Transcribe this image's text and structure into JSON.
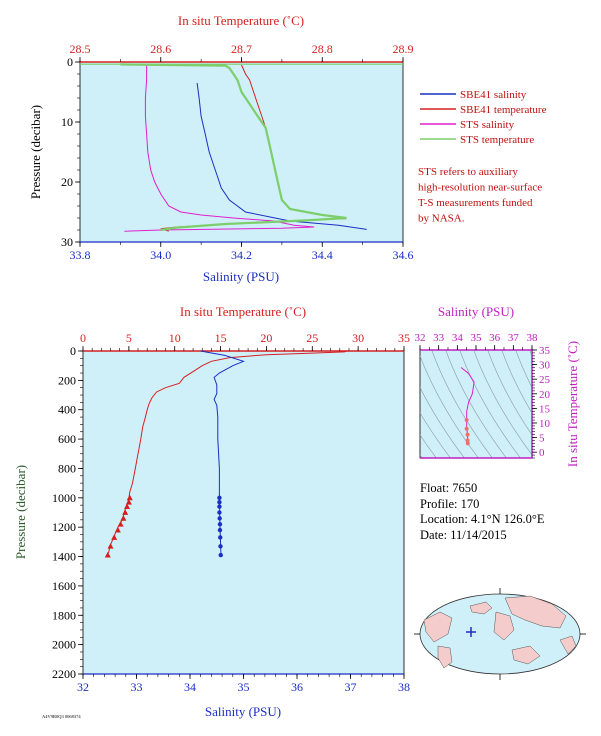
{
  "chart_data": [
    {
      "type": "line",
      "name": "upper-profile",
      "top_axis_label": "In situ Temperature (˚C)",
      "bottom_axis_label": "Salinity (PSU)",
      "ylabel": "Pressure (decibar)",
      "temperature_range": [
        28.5,
        28.9
      ],
      "temperature_ticks": [
        "28.5",
        "28.6",
        "28.7",
        "28.8",
        "28.9"
      ],
      "salinity_range": [
        33.8,
        34.6
      ],
      "salinity_ticks": [
        "33.8",
        "34.0",
        "34.2",
        "34.4",
        "34.6"
      ],
      "pressure_range": [
        0,
        30
      ],
      "pressure_ticks": [
        "0",
        "10",
        "20",
        "30"
      ],
      "legend": [
        {
          "label": "SBE41 salinity",
          "color": "#1a2fc4"
        },
        {
          "label": "SBE41 temperature",
          "color": "#d62020"
        },
        {
          "label": "STS salinity",
          "color": "#e020d0"
        },
        {
          "label": "STS temperature",
          "color": "#7ccf6a"
        }
      ],
      "note": [
        "STS refers to auxiliary",
        "high-resolution near-surface",
        "T-S measurements funded",
        "by NASA."
      ],
      "series": [
        {
          "name": "SBE41 salinity",
          "axis": "salinity",
          "color": "#1a2fc4",
          "points": [
            [
              34.09,
              3.5
            ],
            [
              34.095,
              6
            ],
            [
              34.1,
              9
            ],
            [
              34.11,
              12
            ],
            [
              34.12,
              15
            ],
            [
              34.13,
              17
            ],
            [
              34.14,
              19
            ],
            [
              34.15,
              21
            ],
            [
              34.17,
              23
            ],
            [
              34.21,
              25
            ],
            [
              34.32,
              26.5
            ],
            [
              34.44,
              27.2
            ],
            [
              34.51,
              27.9
            ]
          ]
        },
        {
          "name": "SBE41 temperature",
          "axis": "temperature",
          "color": "#d62020",
          "points": [
            [
              28.7,
              0.5
            ],
            [
              28.705,
              2
            ],
            [
              28.71,
              3
            ],
            [
              28.715,
              5
            ],
            [
              28.72,
              7
            ],
            [
              28.725,
              9
            ],
            [
              28.73,
              11
            ],
            [
              28.735,
              14
            ],
            [
              28.74,
              17
            ],
            [
              28.745,
              20
            ],
            [
              28.75,
              23
            ],
            [
              28.76,
              24.5
            ],
            [
              28.8,
              25.5
            ],
            [
              28.83,
              26.1
            ],
            [
              28.75,
              26.5
            ],
            [
              28.66,
              27.2
            ],
            [
              28.62,
              27.5
            ],
            [
              28.6,
              27.8
            ],
            [
              28.61,
              28.2
            ]
          ]
        },
        {
          "name": "STS salinity",
          "axis": "salinity",
          "color": "#e020d0",
          "points": [
            [
              33.965,
              0.5
            ],
            [
              33.965,
              1
            ],
            [
              33.965,
              3
            ],
            [
              33.962,
              6
            ],
            [
              33.962,
              9
            ],
            [
              33.965,
              12
            ],
            [
              33.968,
              15
            ],
            [
              33.975,
              18
            ],
            [
              33.985,
              20
            ],
            [
              34.0,
              22
            ],
            [
              34.02,
              24
            ],
            [
              34.05,
              25
            ],
            [
              34.1,
              25.5
            ],
            [
              34.18,
              26
            ],
            [
              34.28,
              26.5
            ],
            [
              34.33,
              27.2
            ],
            [
              34.38,
              27.5
            ],
            [
              34.3,
              27.7
            ],
            [
              34.0,
              28
            ],
            [
              33.91,
              28.2
            ]
          ]
        },
        {
          "name": "STS temperature",
          "axis": "temperature",
          "color": "#7ccf6a",
          "points": [
            [
              28.55,
              0.4
            ],
            [
              28.68,
              0.6
            ],
            [
              28.685,
              1
            ],
            [
              28.69,
              2
            ],
            [
              28.695,
              3
            ],
            [
              28.7,
              5
            ],
            [
              28.71,
              7
            ],
            [
              28.72,
              9
            ],
            [
              28.73,
              11
            ],
            [
              28.735,
              14
            ],
            [
              28.74,
              17
            ],
            [
              28.745,
              20
            ],
            [
              28.75,
              23
            ],
            [
              28.76,
              24.5
            ],
            [
              28.8,
              25.5
            ],
            [
              28.83,
              26.0
            ],
            [
              28.78,
              26.4
            ],
            [
              28.68,
              27.0
            ],
            [
              28.62,
              27.6
            ],
            [
              28.6,
              28.0
            ]
          ]
        }
      ]
    },
    {
      "type": "line",
      "name": "lower-profile",
      "top_axis_label": "In situ Temperature (˚C)",
      "bottom_axis_label": "Salinity (PSU)",
      "ylabel": "Pressure (decibar)",
      "temperature_range": [
        0,
        35
      ],
      "temperature_ticks": [
        "0",
        "5",
        "10",
        "15",
        "20",
        "25",
        "30",
        "35"
      ],
      "salinity_range": [
        32,
        38
      ],
      "salinity_ticks": [
        "32",
        "33",
        "34",
        "35",
        "36",
        "37",
        "38"
      ],
      "pressure_range": [
        0,
        2200
      ],
      "pressure_ticks": [
        "0",
        "200",
        "400",
        "600",
        "800",
        "1000",
        "1200",
        "1400",
        "1600",
        "1800",
        "2000",
        "2200"
      ],
      "series": [
        {
          "name": "temperature",
          "axis": "temperature",
          "color": "#d62020",
          "points": [
            [
              28.8,
              0
            ],
            [
              28.5,
              6
            ],
            [
              25,
              14
            ],
            [
              20,
              25
            ],
            [
              16,
              45
            ],
            [
              14,
              70
            ],
            [
              13,
              100
            ],
            [
              12,
              140
            ],
            [
              11,
              180
            ],
            [
              10.5,
              220
            ],
            [
              9,
              250
            ],
            [
              8,
              280
            ],
            [
              7.5,
              320
            ],
            [
              7.2,
              360
            ],
            [
              7,
              400
            ],
            [
              6.8,
              450
            ],
            [
              6.5,
              520
            ],
            [
              6.3,
              600
            ],
            [
              6,
              700
            ],
            [
              5.7,
              800
            ],
            [
              5.4,
              900
            ],
            [
              5.1,
              960
            ],
            [
              5,
              1000
            ],
            [
              4.9,
              1030
            ],
            [
              4.7,
              1060
            ],
            [
              4.5,
              1100
            ],
            [
              4.3,
              1150
            ],
            [
              3.8,
              1200
            ],
            [
              3.4,
              1260
            ],
            [
              3.0,
              1320
            ],
            [
              2.8,
              1370
            ],
            [
              2.6,
              1400
            ]
          ]
        },
        {
          "name": "salinity",
          "axis": "salinity",
          "color": "#1a2fc4",
          "points": [
            [
              34.2,
              0
            ],
            [
              34.35,
              10
            ],
            [
              34.65,
              30
            ],
            [
              35.0,
              70
            ],
            [
              34.8,
              100
            ],
            [
              34.55,
              150
            ],
            [
              34.45,
              180
            ],
            [
              34.5,
              230
            ],
            [
              34.5,
              290
            ],
            [
              34.45,
              330
            ],
            [
              34.5,
              370
            ],
            [
              34.52,
              450
            ],
            [
              34.52,
              600
            ],
            [
              34.55,
              800
            ],
            [
              34.55,
              1000
            ],
            [
              34.56,
              1200
            ],
            [
              34.58,
              1400
            ]
          ]
        },
        {
          "name": "temperature-markers",
          "axis": "temperature",
          "color": "#d62020",
          "marker": "triangle",
          "points": [
            [
              5.1,
              1000
            ],
            [
              5.0,
              1030
            ],
            [
              4.8,
              1060
            ],
            [
              4.6,
              1100
            ],
            [
              4.4,
              1140
            ],
            [
              4.1,
              1180
            ],
            [
              3.8,
              1220
            ],
            [
              3.4,
              1270
            ],
            [
              3.0,
              1330
            ],
            [
              2.7,
              1390
            ]
          ]
        },
        {
          "name": "salinity-markers",
          "axis": "salinity",
          "color": "#1a2fc4",
          "marker": "circle",
          "points": [
            [
              34.55,
              1000
            ],
            [
              34.55,
              1030
            ],
            [
              34.55,
              1060
            ],
            [
              34.55,
              1100
            ],
            [
              34.555,
              1140
            ],
            [
              34.56,
              1180
            ],
            [
              34.56,
              1220
            ],
            [
              34.565,
              1270
            ],
            [
              34.57,
              1330
            ],
            [
              34.575,
              1390
            ]
          ]
        }
      ]
    },
    {
      "type": "scatter",
      "name": "ts-diagram",
      "top_axis_label": "Salinity (PSU)",
      "right_axis_label": "In situ Temperature (˚C)",
      "salinity_range": [
        32,
        38
      ],
      "salinity_ticks": [
        "32",
        "33",
        "34",
        "35",
        "36",
        "37",
        "38"
      ],
      "temperature_range": [
        -2,
        35
      ],
      "temperature_ticks": [
        "0",
        "5",
        "10",
        "15",
        "20",
        "25",
        "30",
        "35"
      ],
      "series": [
        {
          "name": "profile",
          "color": "#e020d0",
          "points": [
            [
              34.2,
              29
            ],
            [
              34.6,
              27
            ],
            [
              34.9,
              24
            ],
            [
              34.8,
              20
            ],
            [
              34.6,
              17
            ],
            [
              34.5,
              14
            ],
            [
              34.5,
              11
            ],
            [
              34.5,
              8
            ],
            [
              34.55,
              6
            ],
            [
              34.55,
              4
            ],
            [
              34.56,
              3
            ]
          ]
        }
      ]
    }
  ],
  "float_info": {
    "float": "Float: 7650",
    "profile": "Profile: 170",
    "location": "Location: 4.1°N 126.0°E",
    "date": "Date: 11/14/2015"
  },
  "footer_code": "A4V9R0Q3 0068374",
  "map": {
    "ocean_color": "#cfeff9",
    "land_color": "#f4cccc",
    "marker_color": "#1a2fc4"
  }
}
